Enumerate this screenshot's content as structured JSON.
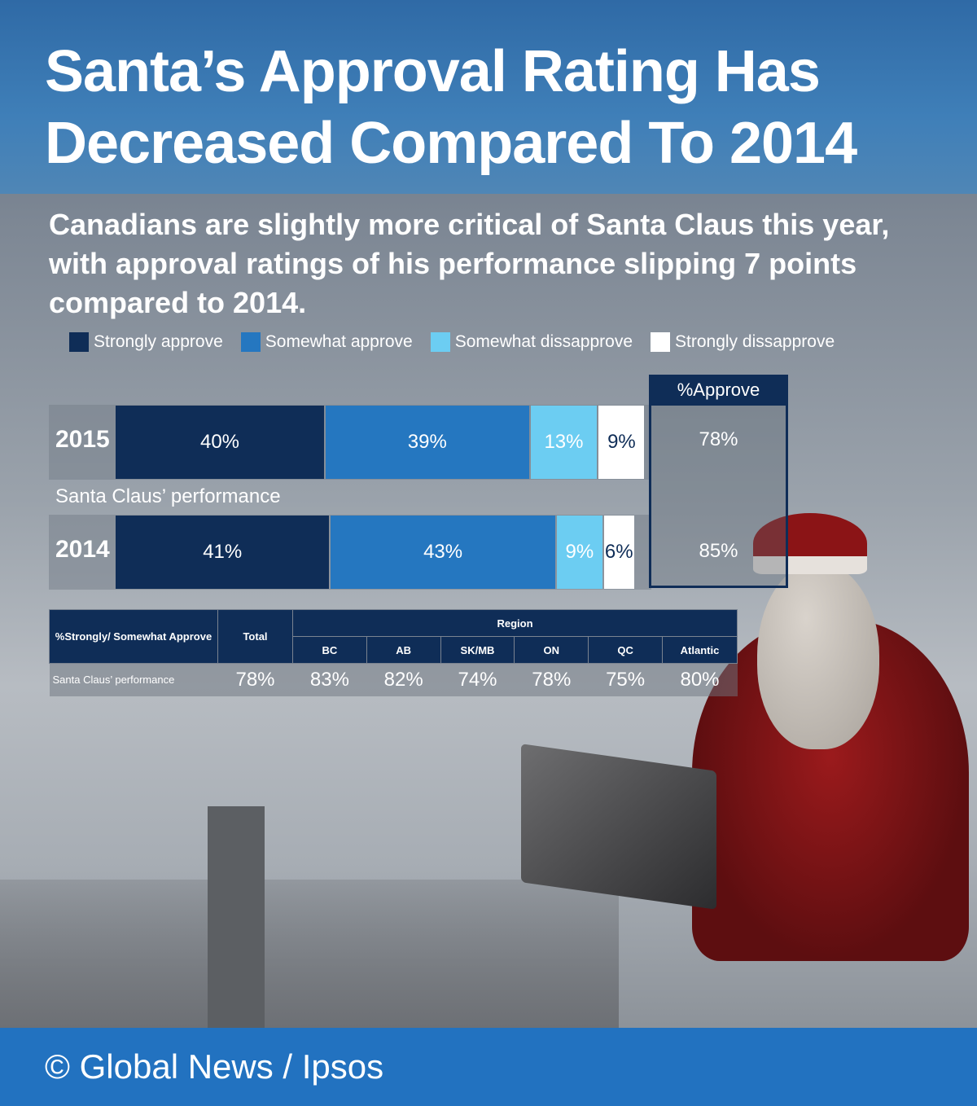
{
  "title": "Santa’s Approval Rating Has Decreased Compared To 2014",
  "subtitle": "Canadians are slightly more critical of Santa Claus this year, with approval ratings of his performance slipping 7 points compared to 2014.",
  "footer": "© Global News / Ipsos",
  "chart_data": {
    "type": "bar",
    "orientation": "horizontal-stacked",
    "label": "Santa Claus’ performance",
    "categories": [
      "2015",
      "2014"
    ],
    "series": [
      {
        "name": "Strongly approve",
        "color": "#0f2d57",
        "values": [
          40,
          41
        ]
      },
      {
        "name": "Somewhat approve",
        "color": "#2577c0",
        "values": [
          39,
          43
        ]
      },
      {
        "name": "Somewhat dissapprove",
        "color": "#6ccdf2",
        "values": [
          13,
          9
        ]
      },
      {
        "name": "Strongly dissapprove",
        "color": "#ffffff",
        "values": [
          9,
          6
        ]
      }
    ],
    "approve": {
      "header": "%Approve",
      "values": [
        "78%",
        "85%"
      ]
    }
  },
  "table": {
    "corner": "%Strongly/ Somewhat Approve",
    "total_header": "Total",
    "region_header": "Region",
    "regions": [
      "BC",
      "AB",
      "SK/MB",
      "ON",
      "QC",
      "Atlantic"
    ],
    "row_label": "Santa Claus’ performance",
    "total": "78%",
    "values": [
      "83%",
      "82%",
      "74%",
      "78%",
      "75%",
      "80%"
    ]
  }
}
